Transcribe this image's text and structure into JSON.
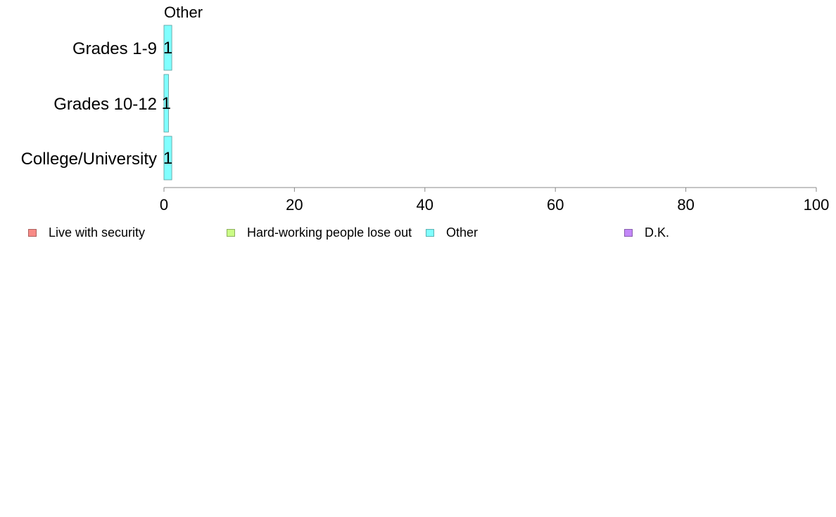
{
  "chart_data": {
    "type": "bar",
    "orientation": "horizontal",
    "panel_title": "Other",
    "categories": [
      "Grades 1-9",
      "Grades 10-12",
      "College/University"
    ],
    "series": [
      {
        "name": "Other",
        "values": [
          1.2,
          0.7,
          1.2
        ],
        "labels": [
          "1",
          "1",
          "1"
        ],
        "color": "#80ffff"
      }
    ],
    "xlim": [
      0,
      100
    ],
    "x_ticks": [
      0,
      20,
      40,
      60,
      80,
      100
    ],
    "grid": false,
    "legend_position": "bottom",
    "legend": [
      {
        "label": "Live with security",
        "color": "#f88a86"
      },
      {
        "label": "Hard-working people lose out",
        "color": "#cbfc86"
      },
      {
        "label": "Other",
        "color": "#80ffff"
      },
      {
        "label": "D.K.",
        "color": "#c387f8"
      }
    ]
  }
}
